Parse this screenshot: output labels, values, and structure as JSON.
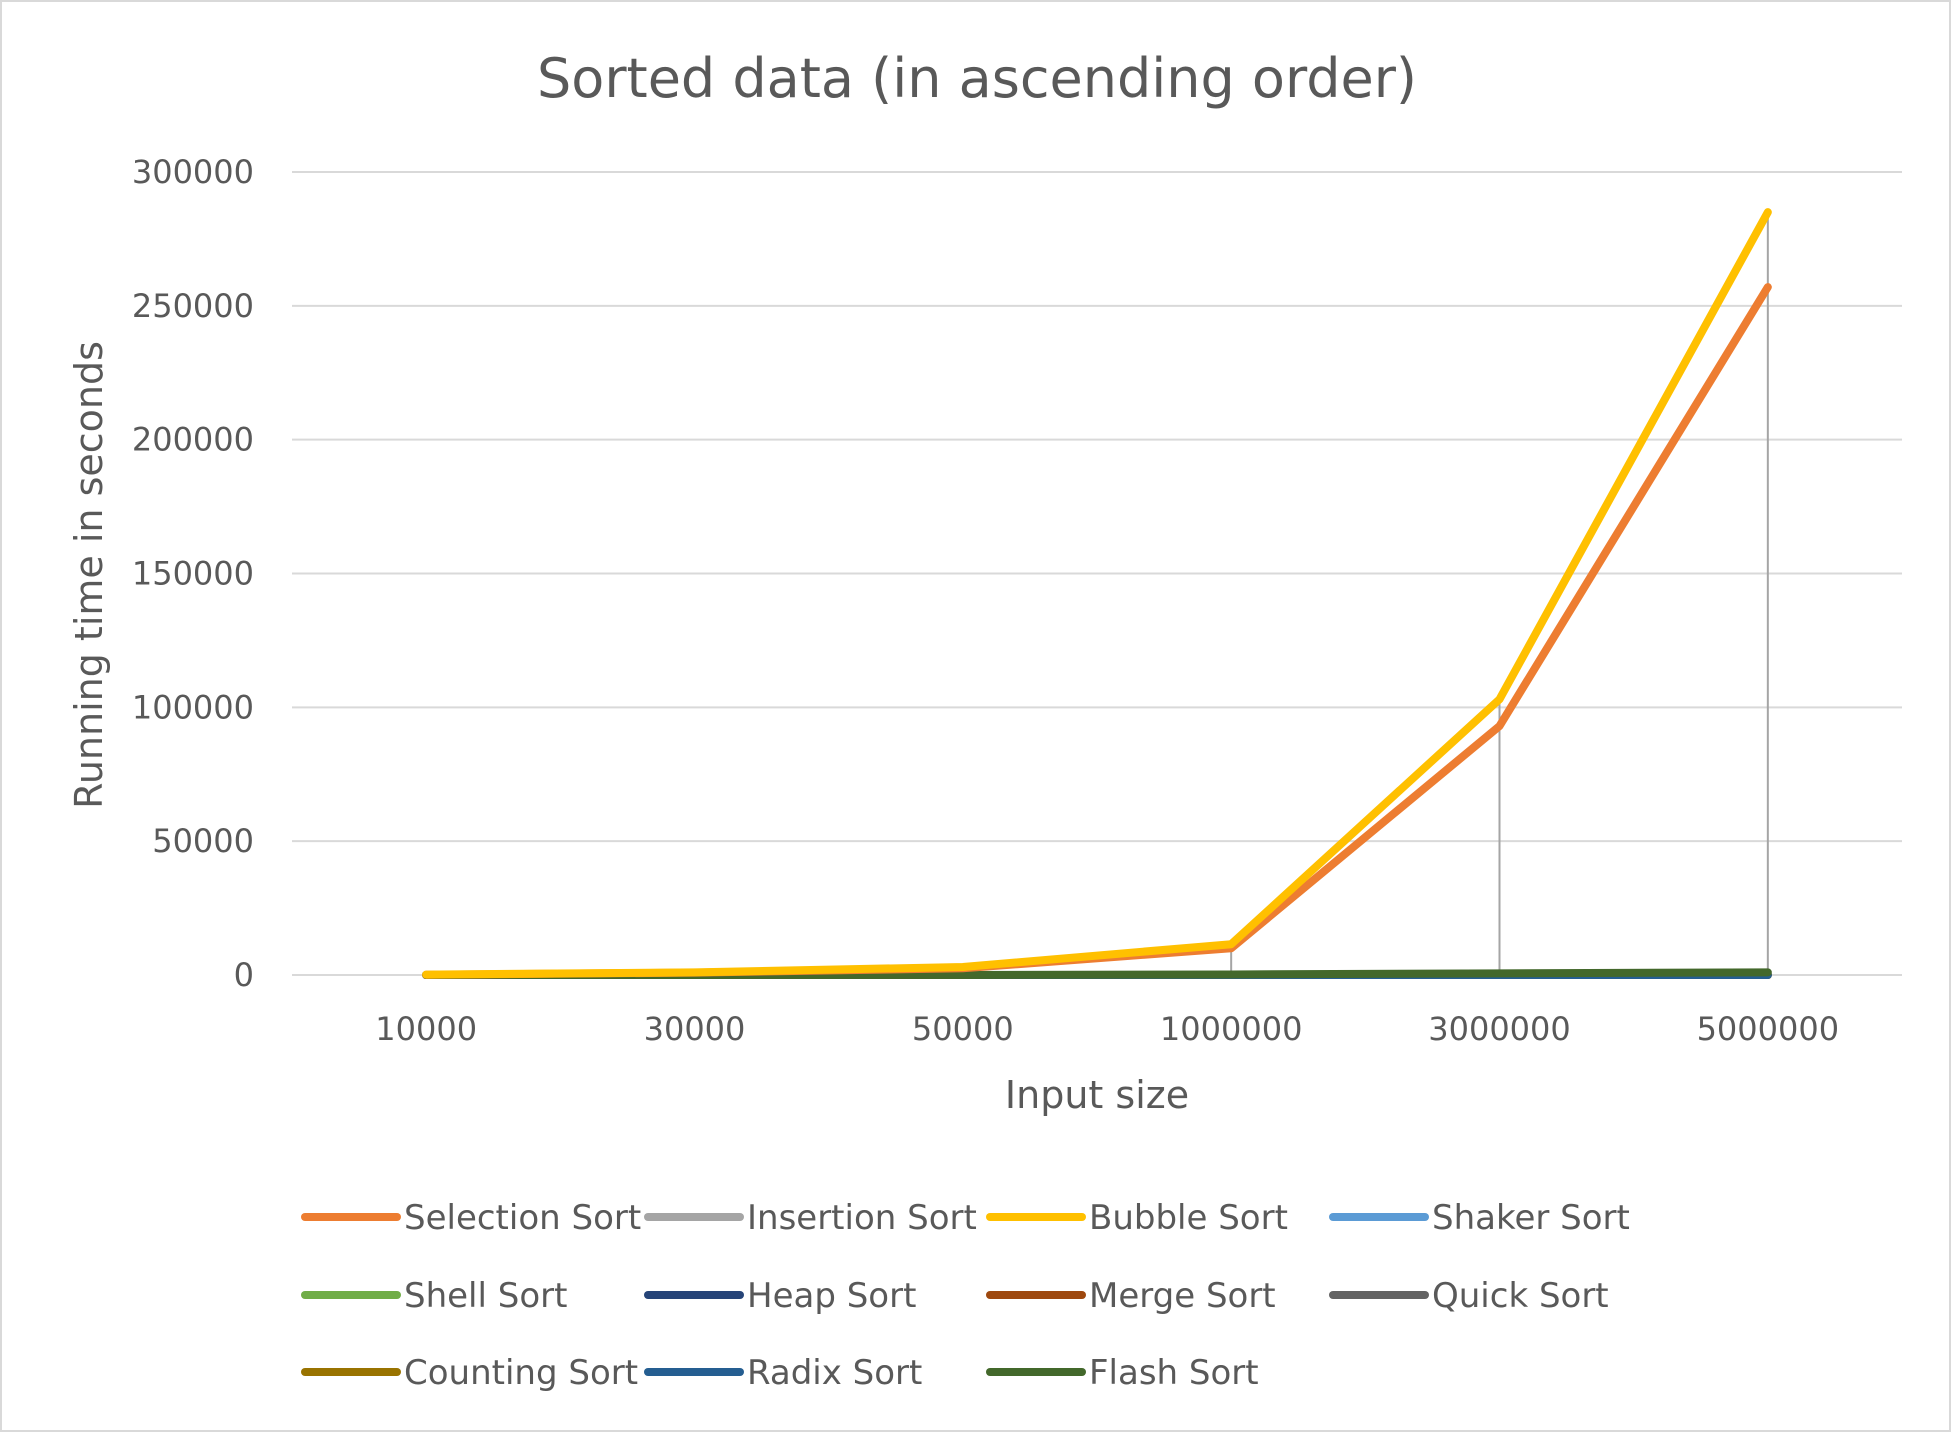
{
  "chart_data": {
    "type": "line",
    "title": "Sorted data (in ascending order)",
    "xlabel": "Input size",
    "ylabel": "Running time in seconds",
    "categories": [
      "10000",
      "30000",
      "50000",
      "1000000",
      "3000000",
      "5000000"
    ],
    "ylim": [
      0,
      300000
    ],
    "yticks": [
      "0",
      "50000",
      "100000",
      "150000",
      "200000",
      "250000",
      "300000"
    ],
    "grid": true,
    "legend_position": "bottom",
    "series": [
      {
        "name": "Selection Sort",
        "color": "#ED7D31",
        "values": [
          100,
          900,
          2500,
          10000,
          93000,
          257000
        ]
      },
      {
        "name": "Insertion Sort",
        "color": "#A5A5A5",
        "values": [
          0,
          0,
          0,
          0,
          0,
          0
        ]
      },
      {
        "name": "Bubble Sort",
        "color": "#FFC000",
        "values": [
          150,
          1000,
          3000,
          11500,
          103000,
          285000
        ]
      },
      {
        "name": "Shaker Sort",
        "color": "#5B9BD5",
        "values": [
          0,
          0,
          0,
          0,
          0,
          0
        ]
      },
      {
        "name": "Shell Sort",
        "color": "#70AD47",
        "values": [
          0,
          0,
          0,
          0,
          0,
          0
        ]
      },
      {
        "name": "Heap Sort",
        "color": "#264478",
        "values": [
          0,
          0,
          0,
          0,
          0,
          0
        ]
      },
      {
        "name": "Merge Sort",
        "color": "#9E480E",
        "values": [
          0,
          0,
          0,
          0,
          0,
          0
        ]
      },
      {
        "name": "Quick Sort",
        "color": "#636363",
        "values": [
          0,
          0,
          0,
          0,
          0,
          0
        ]
      },
      {
        "name": "Counting Sort",
        "color": "#997300",
        "values": [
          0,
          0,
          0,
          0,
          0,
          0
        ]
      },
      {
        "name": "Radix Sort",
        "color": "#255E91",
        "values": [
          0,
          0,
          0,
          0,
          0,
          0
        ]
      },
      {
        "name": "Flash Sort",
        "color": "#43682B",
        "values": [
          0,
          0,
          0,
          200,
          600,
          1000
        ]
      }
    ]
  }
}
